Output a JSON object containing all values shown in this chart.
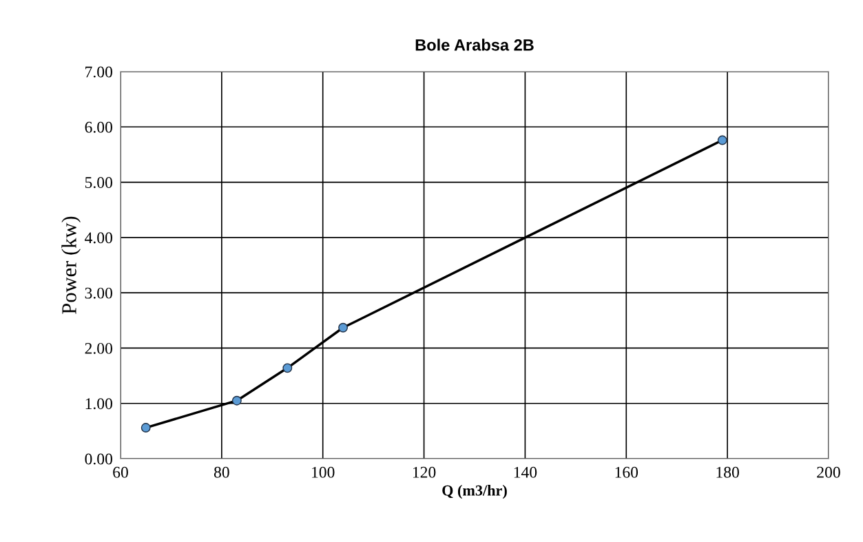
{
  "chart_data": {
    "type": "line",
    "title": "Bole Arabsa 2B",
    "xlabel": "Q (m3/hr)",
    "ylabel": "Power (kw)",
    "x": [
      65,
      83,
      93,
      104,
      179
    ],
    "series": [
      {
        "color": "#000000",
        "values": [
          0.56,
          1.05,
          1.64,
          2.37,
          5.76
        ]
      }
    ],
    "marker": "circle",
    "line_style": "solid",
    "grid": true,
    "xlim": [
      60,
      200
    ],
    "xticks": [
      60,
      80,
      100,
      120,
      140,
      160,
      180,
      200
    ],
    "ylim": [
      0,
      7
    ],
    "yticks": [
      {
        "value": 0,
        "label": "0.00"
      },
      {
        "value": 1,
        "label": "1.00"
      },
      {
        "value": 2,
        "label": "2.00"
      },
      {
        "value": 3,
        "label": "3.00"
      },
      {
        "value": 4,
        "label": "4.00"
      },
      {
        "value": 5,
        "label": "5.00"
      },
      {
        "value": 6,
        "label": "6.00"
      },
      {
        "value": 7,
        "label": "7.00"
      }
    ]
  }
}
